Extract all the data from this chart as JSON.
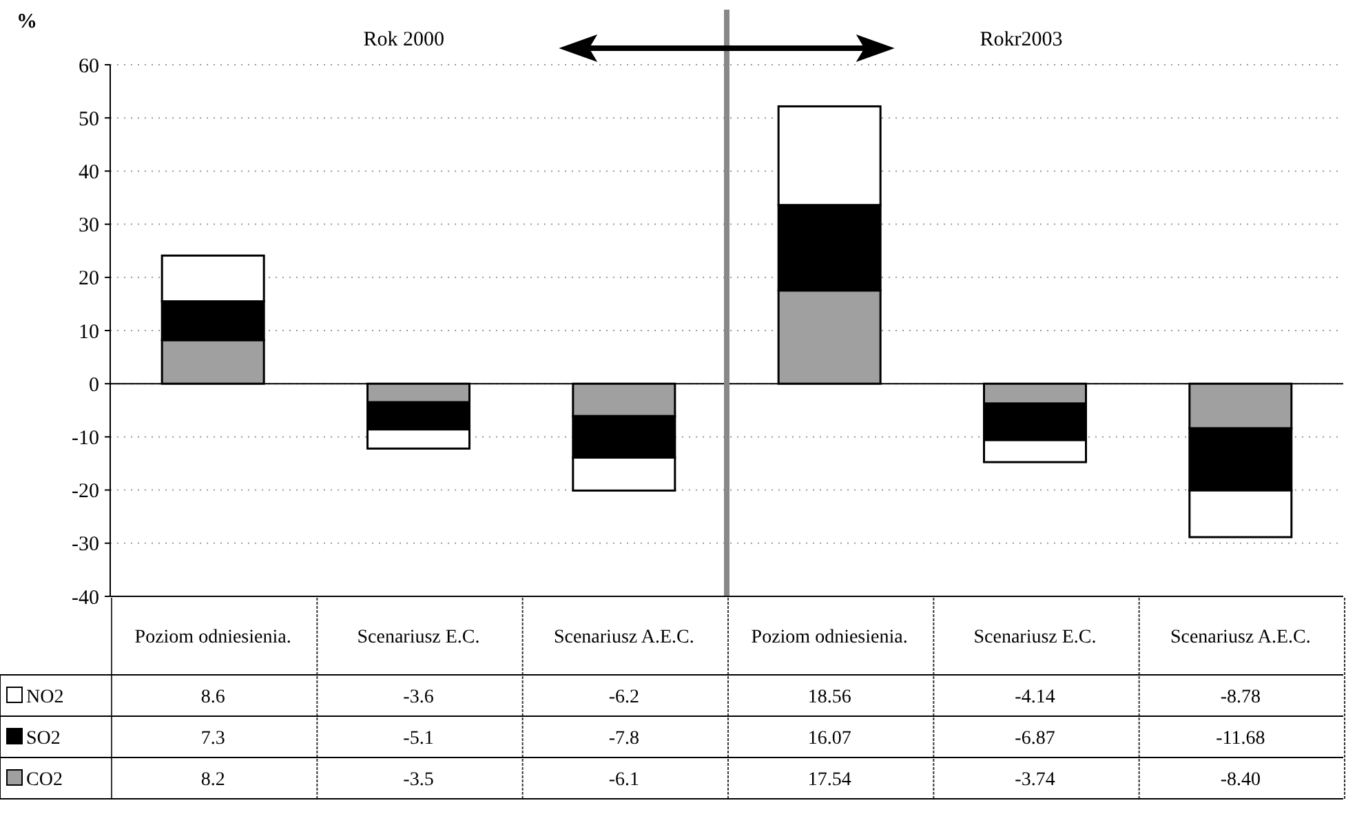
{
  "chart_data": {
    "type": "bar",
    "stacked": true,
    "ylabel": "%",
    "ylim": [
      -40,
      60
    ],
    "yticks": [
      -40,
      -30,
      -20,
      -10,
      0,
      10,
      20,
      30,
      40,
      50,
      60
    ],
    "grid": "y",
    "legend": "bottom left",
    "data_labels": true,
    "categories": [
      "Poziom odniesienia.",
      "Scenariusz E.C.",
      "Scenariusz A.E.C.",
      "Poziom odniesienia.",
      "Scenariusz E.C.",
      "Scenariusz A.E.C."
    ],
    "series": [
      {
        "name": "CO2",
        "color": "#a0a0a0",
        "values": [
          8.2,
          -3.5,
          -6.1,
          17.54,
          -3.74,
          -8.4
        ],
        "value_labels": [
          "8.2",
          "-3.5",
          "-6.1",
          "17.54",
          "-3.74",
          "-8.40"
        ]
      },
      {
        "name": "SO2",
        "color": "#000000",
        "values": [
          7.3,
          -5.1,
          -7.8,
          16.07,
          -6.87,
          -11.68
        ],
        "value_labels": [
          "7.3",
          "-5.1",
          "-7.8",
          "16.07",
          "-6.87",
          "-11.68"
        ]
      },
      {
        "name": "NO2",
        "color": "#ffffff",
        "values": [
          8.6,
          -3.6,
          -6.2,
          18.56,
          -4.14,
          -8.78
        ],
        "value_labels": [
          "8.6",
          "-3.6",
          "-6.2",
          "18.56",
          "-4.14",
          "-8.78"
        ]
      }
    ],
    "annotations": [
      "Rok 2000",
      "Rokr2003"
    ]
  }
}
